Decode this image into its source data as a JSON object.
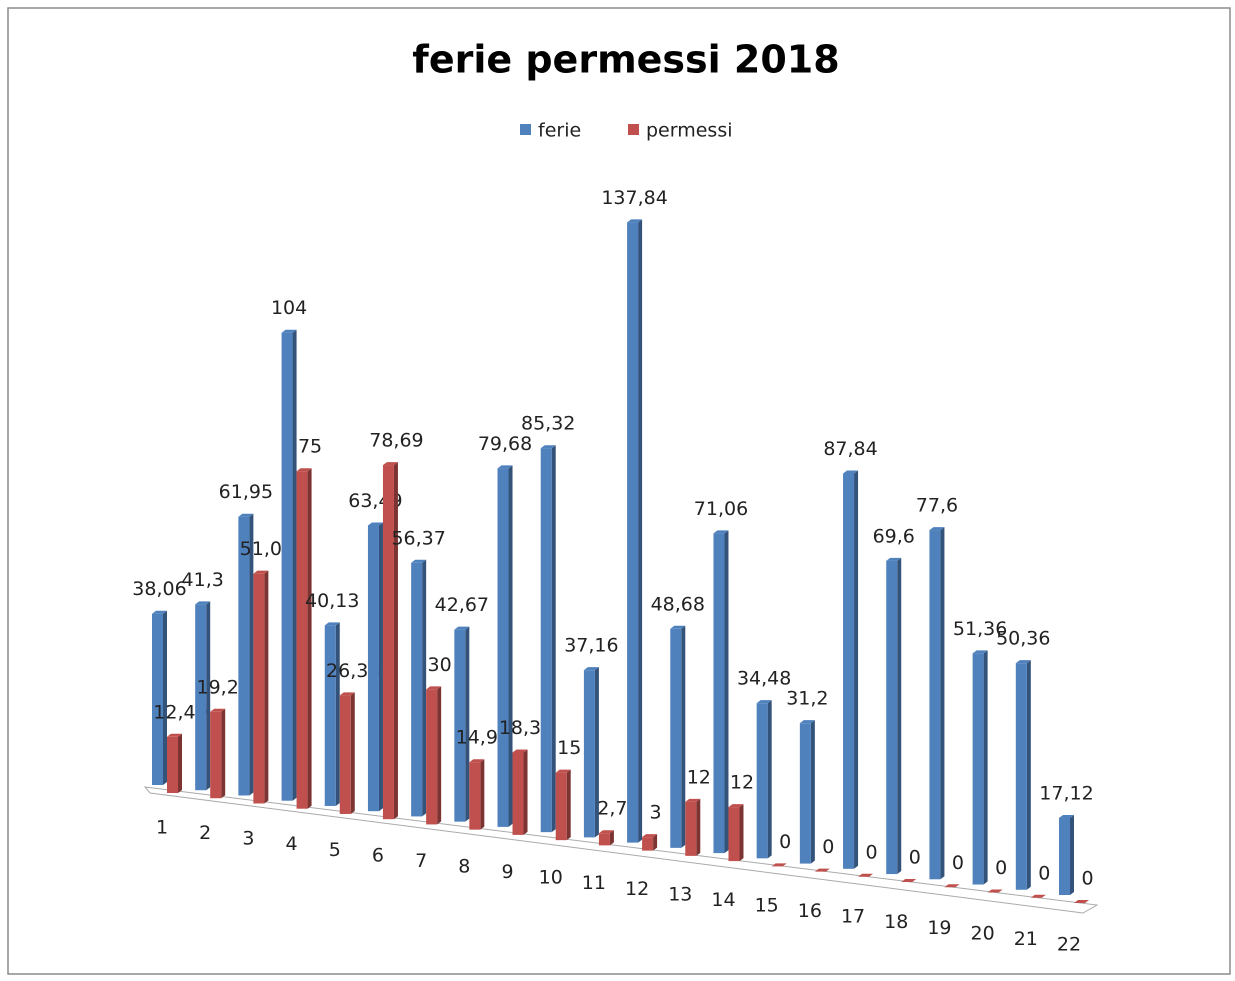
{
  "chart_data": {
    "type": "bar3d",
    "title": "ferie permessi 2018",
    "categories": [
      "1",
      "2",
      "3",
      "4",
      "5",
      "6",
      "7",
      "8",
      "9",
      "10",
      "11",
      "12",
      "13",
      "14",
      "15",
      "16",
      "17",
      "18",
      "19",
      "20",
      "21",
      "22"
    ],
    "series": [
      {
        "name": "ferie",
        "color": "#4f81bd",
        "values": [
          38.06,
          41.3,
          61.95,
          104,
          40.13,
          63.49,
          56.37,
          42.67,
          79.68,
          85.32,
          37.16,
          137.84,
          48.68,
          71.06,
          34.48,
          31.2,
          87.84,
          69.6,
          77.6,
          51.36,
          50.36,
          17.12
        ],
        "value_labels": [
          "38,06",
          "41,3",
          "61,95",
          "104",
          "40,13",
          "63,49",
          "56,37",
          "42,67",
          "79,68",
          "85,32",
          "37,16",
          "137,84",
          "48,68",
          "71,06",
          "34,48",
          "31,2",
          "87,84",
          "69,6",
          "77,6",
          "51,36",
          "50,36",
          "17,12"
        ]
      },
      {
        "name": "permessi",
        "color": "#c0504d",
        "values": [
          12.49,
          19.21,
          51.07,
          75,
          26.36,
          78.69,
          30,
          14.99,
          18.32,
          15,
          2.7,
          3,
          12,
          12,
          0,
          0,
          0,
          0,
          0,
          0,
          0,
          0
        ],
        "value_labels": [
          "12,49",
          "19,21",
          "51,07",
          "75",
          "26,36",
          "78,69",
          "30",
          "14,99",
          "18,32",
          "15",
          "2,7",
          "3",
          "12",
          "12",
          "0",
          "0",
          "0",
          "0",
          "0",
          "0",
          "0",
          "0"
        ]
      }
    ],
    "legend": "top"
  }
}
